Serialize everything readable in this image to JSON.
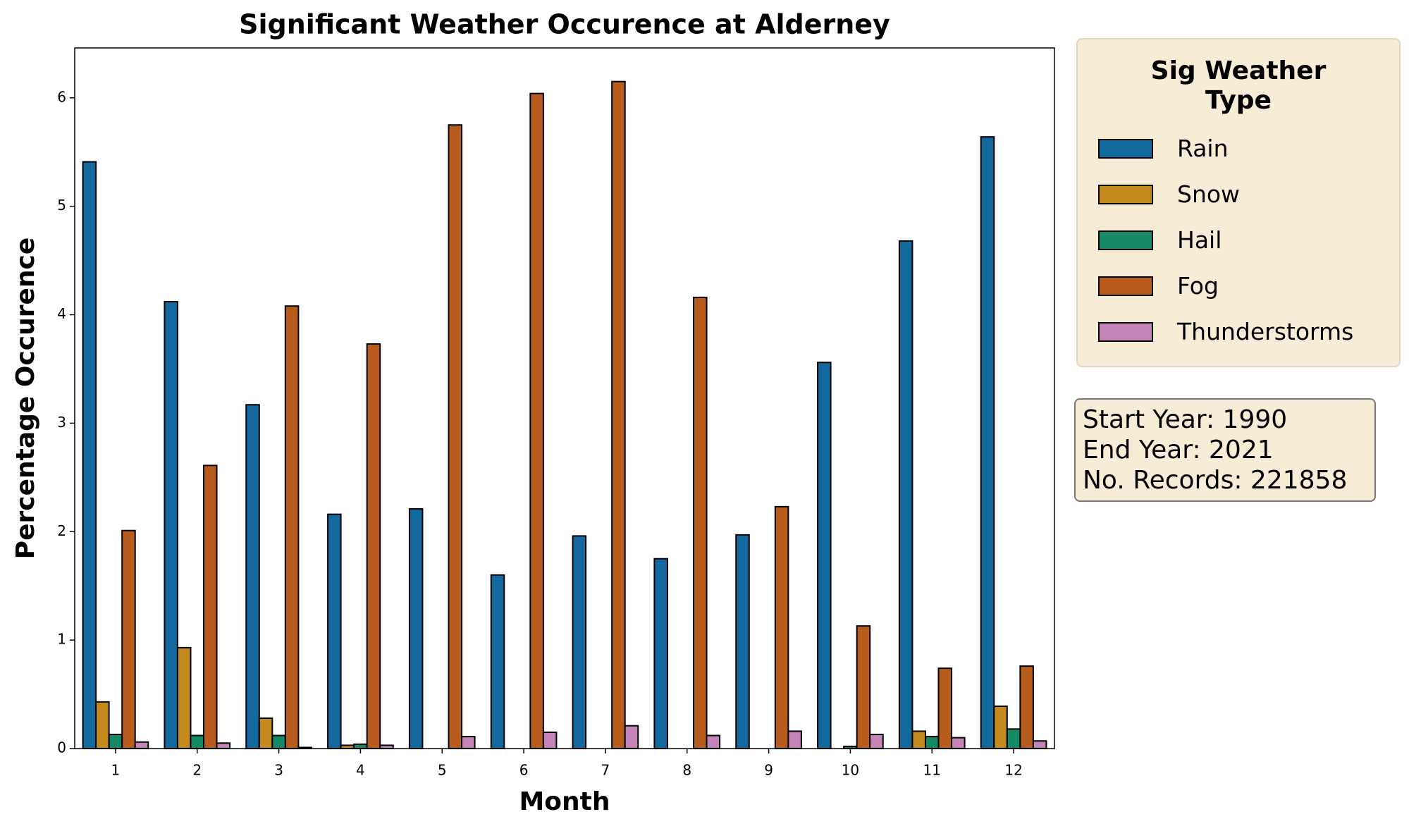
{
  "chart_data": {
    "type": "bar",
    "title": "Significant Weather Occurence at Alderney",
    "x_label": "Month",
    "y_label": "Percentage Occurence",
    "categories": [
      "1",
      "2",
      "3",
      "4",
      "5",
      "6",
      "7",
      "8",
      "9",
      "10",
      "11",
      "12"
    ],
    "series": [
      {
        "name": "Rain",
        "color": "#13699e",
        "values": [
          5.41,
          4.12,
          3.17,
          2.16,
          2.21,
          1.6,
          1.96,
          1.75,
          1.97,
          3.56,
          4.68,
          5.64
        ]
      },
      {
        "name": "Snow",
        "color": "#c48a1e",
        "values": [
          0.43,
          0.93,
          0.28,
          0.03,
          0,
          0,
          0,
          0,
          0,
          0,
          0.16,
          0.39
        ]
      },
      {
        "name": "Hail",
        "color": "#168a66",
        "values": [
          0.13,
          0.12,
          0.12,
          0.04,
          0,
          0,
          0,
          0,
          0,
          0.02,
          0.11,
          0.18
        ]
      },
      {
        "name": "Fog",
        "color": "#b85c1d",
        "values": [
          2.01,
          2.61,
          4.08,
          3.73,
          5.75,
          6.04,
          6.15,
          4.16,
          2.23,
          1.13,
          0.74,
          0.76
        ]
      },
      {
        "name": "Thunderstorms",
        "color": "#c484b8",
        "values": [
          0.06,
          0.05,
          0.01,
          0.03,
          0.11,
          0.15,
          0.21,
          0.12,
          0.16,
          0.13,
          0.1,
          0.07
        ]
      }
    ],
    "ylim": [
      0,
      6.46
    ],
    "yticks": [
      0,
      1,
      2,
      3,
      4,
      5,
      6
    ],
    "legend_title": "Sig Weather Type",
    "legend_position": "outside-right",
    "annotations": [
      "Start Year: 1990",
      "End Year: 2021",
      "No. Records: 221858"
    ]
  }
}
